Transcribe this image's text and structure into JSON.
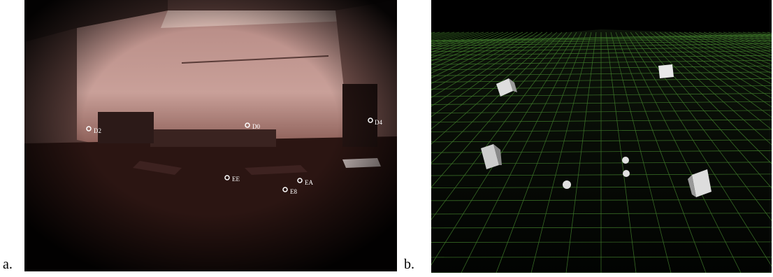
{
  "panels": [
    {
      "label": "a.",
      "markers": [
        {
          "label": "D2"
        },
        {
          "label": "D0"
        },
        {
          "label": "D4"
        },
        {
          "label": "EE"
        },
        {
          "label": "EA"
        },
        {
          "label": "E8"
        }
      ]
    },
    {
      "label": "b."
    }
  ]
}
